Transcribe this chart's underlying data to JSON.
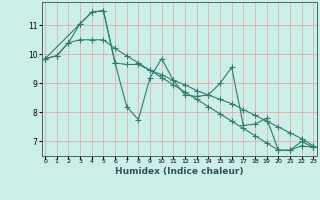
{
  "title": "",
  "xlabel": "Humidex (Indice chaleur)",
  "ylabel": "",
  "bg_color": "#cceee8",
  "line_color": "#2e7d6e",
  "grid_color": "#e8a0a0",
  "x_ticks": [
    0,
    1,
    2,
    3,
    4,
    5,
    6,
    7,
    8,
    9,
    10,
    11,
    12,
    13,
    14,
    15,
    16,
    17,
    18,
    19,
    20,
    21,
    22,
    23
  ],
  "y_ticks": [
    7,
    8,
    9,
    10,
    11
  ],
  "ylim": [
    6.5,
    11.8
  ],
  "xlim": [
    -0.3,
    23.3
  ],
  "series1_x": [
    0,
    1,
    2,
    3,
    4,
    5,
    6,
    7,
    8,
    9,
    10,
    11,
    12,
    13,
    14,
    15,
    16,
    17,
    18,
    19,
    20,
    21,
    22,
    23
  ],
  "series1_y": [
    9.85,
    9.95,
    10.4,
    11.05,
    11.45,
    11.5,
    9.7,
    8.2,
    7.75,
    9.2,
    9.85,
    9.1,
    8.6,
    8.55,
    8.6,
    9.0,
    9.55,
    7.55,
    7.6,
    7.8,
    6.7,
    6.7,
    7.0,
    6.8
  ],
  "series2_x": [
    0,
    3,
    4,
    5,
    6,
    7,
    8,
    9,
    10,
    11,
    12,
    13,
    14,
    15,
    16,
    17,
    18,
    19,
    20,
    21,
    22,
    23
  ],
  "series2_y": [
    9.85,
    11.05,
    11.45,
    11.5,
    9.7,
    9.65,
    9.65,
    9.45,
    9.3,
    9.1,
    8.95,
    8.75,
    8.6,
    8.45,
    8.3,
    8.1,
    7.9,
    7.7,
    7.5,
    7.3,
    7.1,
    6.85
  ],
  "series3_x": [
    0,
    1,
    2,
    3,
    4,
    5,
    6,
    7,
    8,
    9,
    10,
    11,
    12,
    13,
    14,
    15,
    16,
    17,
    18,
    19,
    20,
    21,
    22,
    23
  ],
  "series3_y": [
    9.85,
    9.95,
    10.4,
    10.5,
    10.5,
    10.5,
    10.2,
    9.95,
    9.7,
    9.45,
    9.2,
    8.95,
    8.7,
    8.45,
    8.2,
    7.95,
    7.7,
    7.45,
    7.2,
    6.95,
    6.7,
    6.7,
    6.85,
    6.8
  ]
}
